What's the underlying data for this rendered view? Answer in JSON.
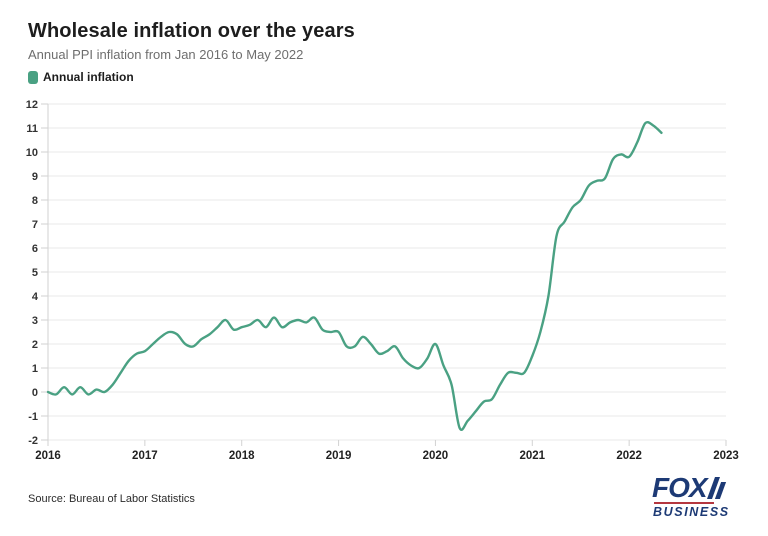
{
  "header": {
    "title": "Wholesale inflation over the years",
    "subtitle": "Annual PPI inflation from Jan 2016 to May 2022"
  },
  "legend": {
    "label": "Annual inflation",
    "color": "#4aa183"
  },
  "chart_data": {
    "type": "line",
    "title": "Wholesale inflation over the years",
    "subtitle": "Annual PPI inflation from Jan 2016 to May 2022",
    "frequency": "monthly",
    "x_start": "Jan 2016",
    "x_end": "May 2022",
    "x_tick_labels": [
      "2016",
      "2017",
      "2018",
      "2019",
      "2020",
      "2021",
      "2022",
      "2023"
    ],
    "y_ticks": [
      -2,
      -1,
      0,
      1,
      2,
      3,
      4,
      5,
      6,
      7,
      8,
      9,
      10,
      11,
      12
    ],
    "ylim": [
      -2,
      12
    ],
    "grid": "horizontal",
    "legend_position": "top-left",
    "line_color": "#4aa183",
    "grid_color": "#e8e8e8",
    "axis_color": "#d2d2d2",
    "series": [
      {
        "name": "Annual inflation",
        "values": [
          0.0,
          -0.1,
          0.2,
          -0.1,
          0.2,
          -0.1,
          0.1,
          0.0,
          0.3,
          0.8,
          1.3,
          1.6,
          1.7,
          2.0,
          2.3,
          2.5,
          2.4,
          2.0,
          1.9,
          2.2,
          2.4,
          2.7,
          3.0,
          2.6,
          2.7,
          2.8,
          3.0,
          2.7,
          3.1,
          2.7,
          2.9,
          3.0,
          2.9,
          3.1,
          2.6,
          2.5,
          2.5,
          1.9,
          1.9,
          2.3,
          2.0,
          1.6,
          1.7,
          1.9,
          1.4,
          1.1,
          1.0,
          1.4,
          2.0,
          1.1,
          0.3,
          -1.5,
          -1.2,
          -0.8,
          -0.4,
          -0.3,
          0.3,
          0.8,
          0.8,
          0.8,
          1.5,
          2.5,
          4.0,
          6.5,
          7.1,
          7.7,
          8.0,
          8.6,
          8.8,
          8.9,
          9.7,
          9.9,
          9.8,
          10.4,
          11.2,
          11.1,
          10.8
        ]
      }
    ]
  },
  "footer": {
    "source": "Source: Bureau of Labor Statistics",
    "logo": {
      "line1": "FOX",
      "line2": "BUSINESS",
      "navy": "#1d3a75",
      "red": "#b5373f"
    }
  }
}
